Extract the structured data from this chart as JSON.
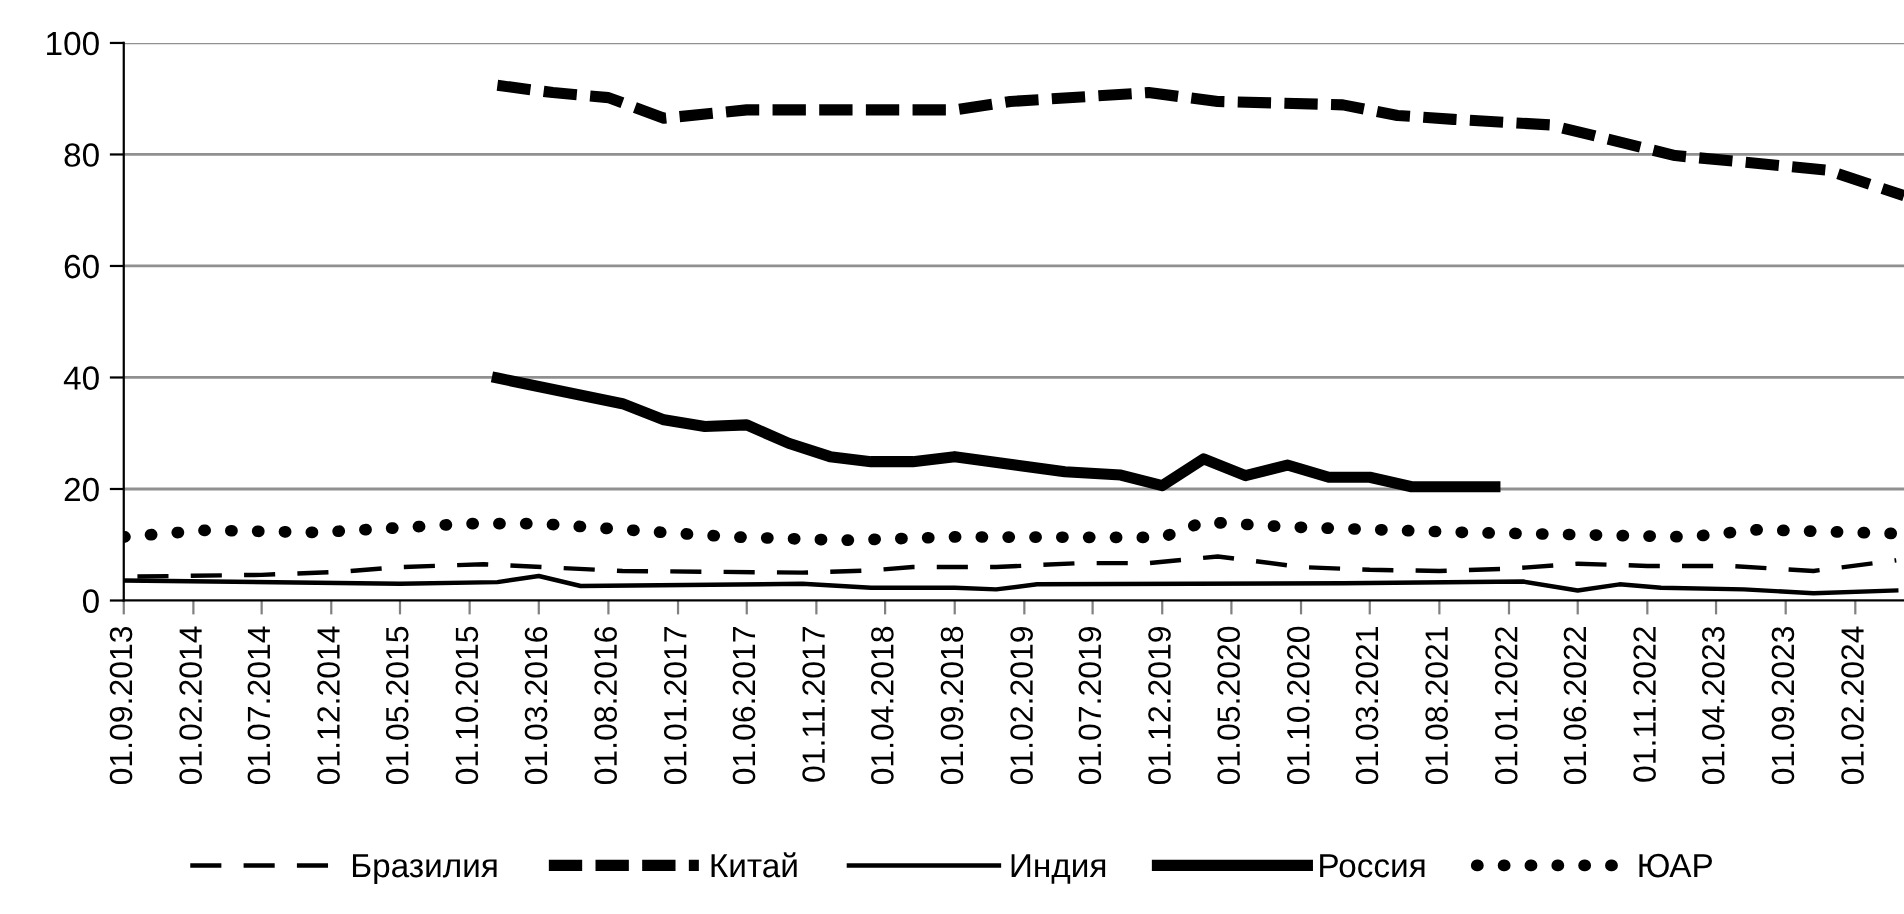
{
  "chart_data": {
    "type": "line",
    "xlim": [
      "2013-09-01",
      "2024-05-18"
    ],
    "xticks": [
      {
        "value": "2013-09-01",
        "label": "01.09.2013"
      },
      {
        "value": "2014-02-01",
        "label": "01.02.2014"
      },
      {
        "value": "2014-07-01",
        "label": "01.07.2014"
      },
      {
        "value": "2014-12-01",
        "label": "01.12.2014"
      },
      {
        "value": "2015-05-01",
        "label": "01.05.2015"
      },
      {
        "value": "2015-10-01",
        "label": "01.10.2015"
      },
      {
        "value": "2016-03-01",
        "label": "01.03.2016"
      },
      {
        "value": "2016-08-01",
        "label": "01.08.2016"
      },
      {
        "value": "2017-01-01",
        "label": "01.01.2017"
      },
      {
        "value": "2017-06-01",
        "label": "01.06.2017"
      },
      {
        "value": "2017-11-01",
        "label": "01.11.2017"
      },
      {
        "value": "2018-04-01",
        "label": "01.04.2018"
      },
      {
        "value": "2018-09-01",
        "label": "01.09.2018"
      },
      {
        "value": "2019-02-01",
        "label": "01.02.2019"
      },
      {
        "value": "2019-07-01",
        "label": "01.07.2019"
      },
      {
        "value": "2019-12-01",
        "label": "01.12.2019"
      },
      {
        "value": "2020-05-01",
        "label": "01.05.2020"
      },
      {
        "value": "2020-10-01",
        "label": "01.10.2020"
      },
      {
        "value": "2021-03-01",
        "label": "01.03.2021"
      },
      {
        "value": "2021-08-01",
        "label": "01.08.2021"
      },
      {
        "value": "2022-01-01",
        "label": "01.01.2022"
      },
      {
        "value": "2022-06-01",
        "label": "01.06.2022"
      },
      {
        "value": "2022-11-01",
        "label": "01.11.2022"
      },
      {
        "value": "2023-04-01",
        "label": "01.04.2023"
      },
      {
        "value": "2023-09-01",
        "label": "01.09.2023"
      },
      {
        "value": "2024-02-01",
        "label": "01.02.2024"
      }
    ],
    "ylim": [
      0,
      100
    ],
    "yticks": [
      0,
      20,
      40,
      60,
      80,
      100
    ],
    "grid": "y",
    "legend": "bottom",
    "marker": "none",
    "series": [
      {
        "name": "Бразилия",
        "color": "#000000",
        "line_style": "dashed",
        "x": [
          "2013-10",
          "2014-07",
          "2015-01",
          "2015-05",
          "2015-11",
          "2016-04",
          "2016-09",
          "2017-10",
          "2018-03",
          "2018-06",
          "2018-12",
          "2019-06",
          "2019-11",
          "2020-04",
          "2020-10",
          "2021-03",
          "2021-08",
          "2022-01",
          "2022-06",
          "2022-11",
          "2023-05",
          "2023-11",
          "2024-05"
        ],
        "values": [
          4.3,
          4.6,
          5.2,
          6.0,
          6.5,
          5.9,
          5.3,
          5.0,
          5.4,
          6.0,
          6.0,
          6.7,
          6.7,
          7.9,
          6.0,
          5.5,
          5.3,
          5.7,
          6.6,
          6.2,
          6.2,
          5.3,
          7.2
        ]
      },
      {
        "name": "Китай",
        "color": "#000000",
        "line_style": "dashed",
        "x": [
          "2015-12",
          "2016-04",
          "2016-08",
          "2016-12",
          "2017-06",
          "2018-09",
          "2019-01",
          "2019-11",
          "2020-04",
          "2021-01",
          "2021-05",
          "2021-09",
          "2022-04",
          "2023-01",
          "2023-12",
          "2024-05-18"
        ],
        "values": [
          92.4,
          91.1,
          90.2,
          86.5,
          88.0,
          88.0,
          89.5,
          91.1,
          89.5,
          88.9,
          87.0,
          86.3,
          85.3,
          79.8,
          77.2,
          72.6
        ]
      },
      {
        "name": "Индия",
        "color": "#000000",
        "line_style": "solid",
        "x": [
          "2013-09",
          "2015-05",
          "2015-12",
          "2016-03",
          "2016-06",
          "2017-10",
          "2018-03",
          "2018-09",
          "2018-12",
          "2019-03",
          "2021-01",
          "2022-02",
          "2022-06",
          "2022-09",
          "2022-12",
          "2023-06",
          "2023-11",
          "2024-05"
        ],
        "values": [
          3.6,
          3.0,
          3.3,
          4.4,
          2.6,
          3.0,
          2.3,
          2.3,
          2.0,
          2.9,
          3.1,
          3.4,
          1.8,
          2.9,
          2.3,
          2.0,
          1.3,
          1.8
        ]
      },
      {
        "name": "Россия",
        "color": "#000000",
        "line_style": "solid",
        "x": [
          "2015-12",
          "2016-09",
          "2016-12",
          "2017-03",
          "2017-06",
          "2017-09",
          "2017-12",
          "2018-03",
          "2018-06",
          "2018-09",
          "2019-05",
          "2019-09",
          "2019-12",
          "2020-03",
          "2020-06",
          "2020-09",
          "2020-12",
          "2021-03",
          "2021-06",
          "2021-12"
        ],
        "values": [
          39.9,
          35.3,
          32.4,
          31.2,
          31.5,
          28.2,
          25.8,
          24.9,
          24.9,
          25.8,
          23.1,
          22.5,
          20.6,
          25.4,
          22.4,
          24.3,
          22.1,
          22.1,
          20.4,
          20.4
        ]
      },
      {
        "name": "ЮАР",
        "color": "#000000",
        "line_style": "dotted",
        "x": [
          "2013-09",
          "2014-03",
          "2014-11",
          "2015-10",
          "2016-03",
          "2016-12",
          "2017-05",
          "2018-01",
          "2018-09",
          "2019-12",
          "2020-03",
          "2020-09",
          "2021-10",
          "2023-02",
          "2023-07",
          "2024-05"
        ],
        "values": [
          11.4,
          12.6,
          12.2,
          13.8,
          13.8,
          12.2,
          11.4,
          10.8,
          11.4,
          11.3,
          14.1,
          13.2,
          12.2,
          11.4,
          12.7,
          12.0
        ]
      }
    ]
  }
}
